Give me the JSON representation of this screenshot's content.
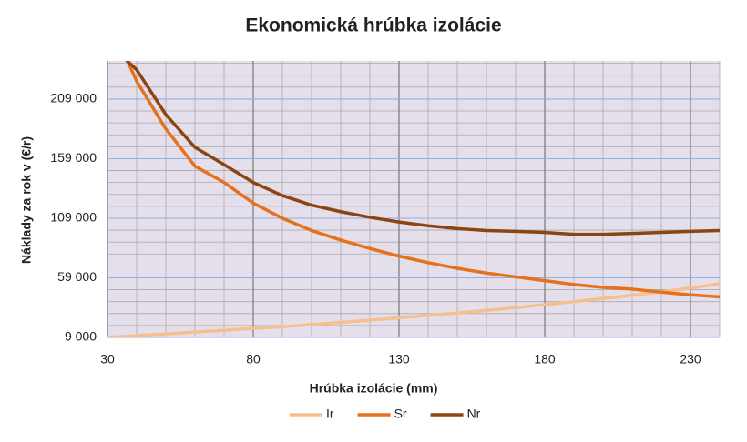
{
  "chart_data": {
    "type": "line",
    "title": "Ekonomická hrúbka izolácie",
    "x_label": "Hrúbka izolácie (mm)",
    "y_label": "Náklady za rok v (€/r)",
    "x": [
      30,
      35,
      40,
      50,
      60,
      70,
      80,
      90,
      100,
      110,
      120,
      130,
      140,
      150,
      160,
      170,
      180,
      190,
      200,
      210,
      220,
      230,
      240
    ],
    "series": [
      {
        "name": "Ir",
        "color": "#f5c08f",
        "values": [
          9000,
          9700,
          10500,
          12000,
          13500,
          15000,
          16500,
          18000,
          19800,
          21600,
          23500,
          25500,
          27500,
          29500,
          31700,
          34000,
          36500,
          39000,
          41600,
          44300,
          47200,
          50500,
          54000
        ]
      },
      {
        "name": "Sr",
        "color": "#e6711c",
        "values": [
          null,
          251000,
          224000,
          184000,
          152700,
          139000,
          121700,
          109000,
          98700,
          90700,
          83600,
          77200,
          71700,
          67000,
          63000,
          59800,
          56600,
          53400,
          51000,
          49500,
          47000,
          44700,
          43100
        ]
      },
      {
        "name": "Nr",
        "color": "#8b4513",
        "values": [
          null,
          245000,
          233600,
          196000,
          168500,
          154000,
          139000,
          128000,
          120000,
          114500,
          109800,
          105800,
          102700,
          100300,
          98700,
          98000,
          97100,
          95500,
          95500,
          96300,
          97100,
          98000,
          98700
        ]
      }
    ],
    "xlim": [
      30,
      240
    ],
    "xticks": [
      30,
      80,
      130,
      180,
      230
    ],
    "ylim": [
      9000,
      241000
    ],
    "yticks": [
      {
        "value": 9000,
        "label": "9 000"
      },
      {
        "value": 59000,
        "label": "59 000"
      },
      {
        "value": 109000,
        "label": "109 000"
      },
      {
        "value": 159000,
        "label": "159 000"
      },
      {
        "value": 209000,
        "label": "209 000"
      }
    ],
    "grid": true,
    "legend": "bottom"
  }
}
